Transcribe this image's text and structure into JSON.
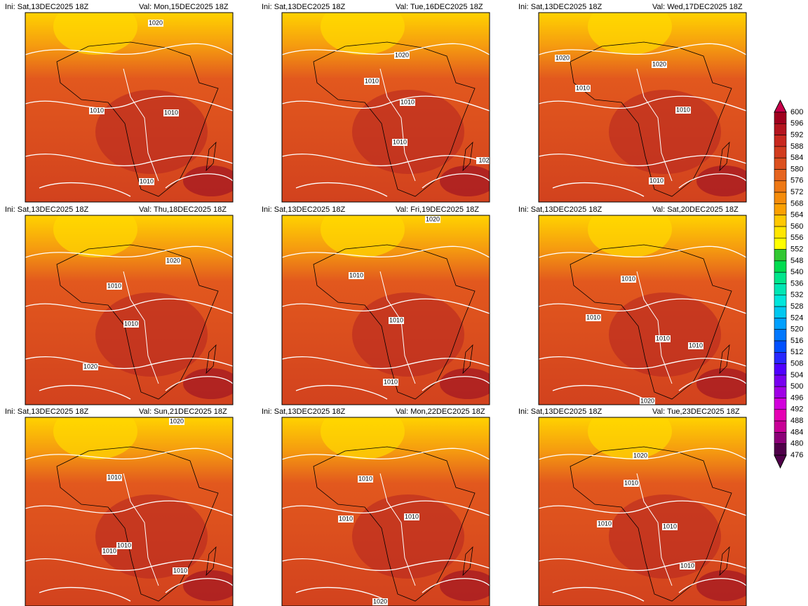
{
  "panels": [
    {
      "ini": "Ini: Sat,13DEC2025 18Z",
      "val": "Val: Mon,15DEC2025 18Z",
      "contour_labels": [
        "1020",
        "1010",
        "1010",
        "1010"
      ]
    },
    {
      "ini": "Ini: Sat,13DEC2025 18Z",
      "val": "Val: Tue,16DEC2025 18Z",
      "contour_labels": [
        "1020",
        "1010",
        "1010",
        "1010",
        "102"
      ]
    },
    {
      "ini": "Ini: Sat,13DEC2025 18Z",
      "val": "Val: Wed,17DEC2025 18Z",
      "contour_labels": [
        "1020",
        "1020",
        "1010",
        "1010",
        "1010"
      ]
    },
    {
      "ini": "Ini: Sat,13DEC2025 18Z",
      "val": "Val: Thu,18DEC2025 18Z",
      "contour_labels": [
        "1020",
        "1010",
        "1010",
        "1020"
      ]
    },
    {
      "ini": "Ini: Sat,13DEC2025 18Z",
      "val": "Val: Fri,19DEC2025 18Z",
      "contour_labels": [
        "1020",
        "1010",
        "1010",
        "1010"
      ]
    },
    {
      "ini": "Ini: Sat,13DEC2025 18Z",
      "val": "Val: Sat,20DEC2025 18Z",
      "contour_labels": [
        "1010",
        "1010",
        "1010",
        "1010",
        "1020"
      ]
    },
    {
      "ini": "Ini: Sat,13DEC2025 18Z",
      "val": "Val: Sun,21DEC2025 18Z",
      "contour_labels": [
        "1020",
        "1010",
        "1010",
        "1010",
        "1010"
      ]
    },
    {
      "ini": "Ini: Sat,13DEC2025 18Z",
      "val": "Val: Mon,22DEC2025 18Z",
      "contour_labels": [
        "1010",
        "1010",
        "1010",
        "1020"
      ]
    },
    {
      "ini": "Ini: Sat,13DEC2025 18Z",
      "val": "Val: Tue,23DEC2025 18Z",
      "contour_labels": [
        "1020",
        "1010",
        "1010",
        "1010",
        "1010"
      ]
    }
  ],
  "colorbar": {
    "levels": [
      600,
      596,
      592,
      588,
      584,
      580,
      576,
      572,
      568,
      564,
      560,
      556,
      552,
      548,
      540,
      536,
      532,
      528,
      524,
      520,
      516,
      512,
      508,
      504,
      500,
      496,
      492,
      488,
      484,
      480,
      476
    ],
    "colors": [
      "#c8004a",
      "#a0001e",
      "#b4141e",
      "#c8281e",
      "#d23c1e",
      "#dc501e",
      "#e6641e",
      "#ee7814",
      "#f58c0a",
      "#fba000",
      "#ffc800",
      "#ffe600",
      "#ffff00",
      "#32c832",
      "#00dc50",
      "#00e68c",
      "#00e6b4",
      "#00e6dc",
      "#00c8f0",
      "#00a0ff",
      "#0078ff",
      "#0050ff",
      "#2828ff",
      "#5000ff",
      "#7800f0",
      "#a000e6",
      "#d200dc",
      "#e600b4",
      "#c80096",
      "#8c0078",
      "#50004a"
    ]
  }
}
